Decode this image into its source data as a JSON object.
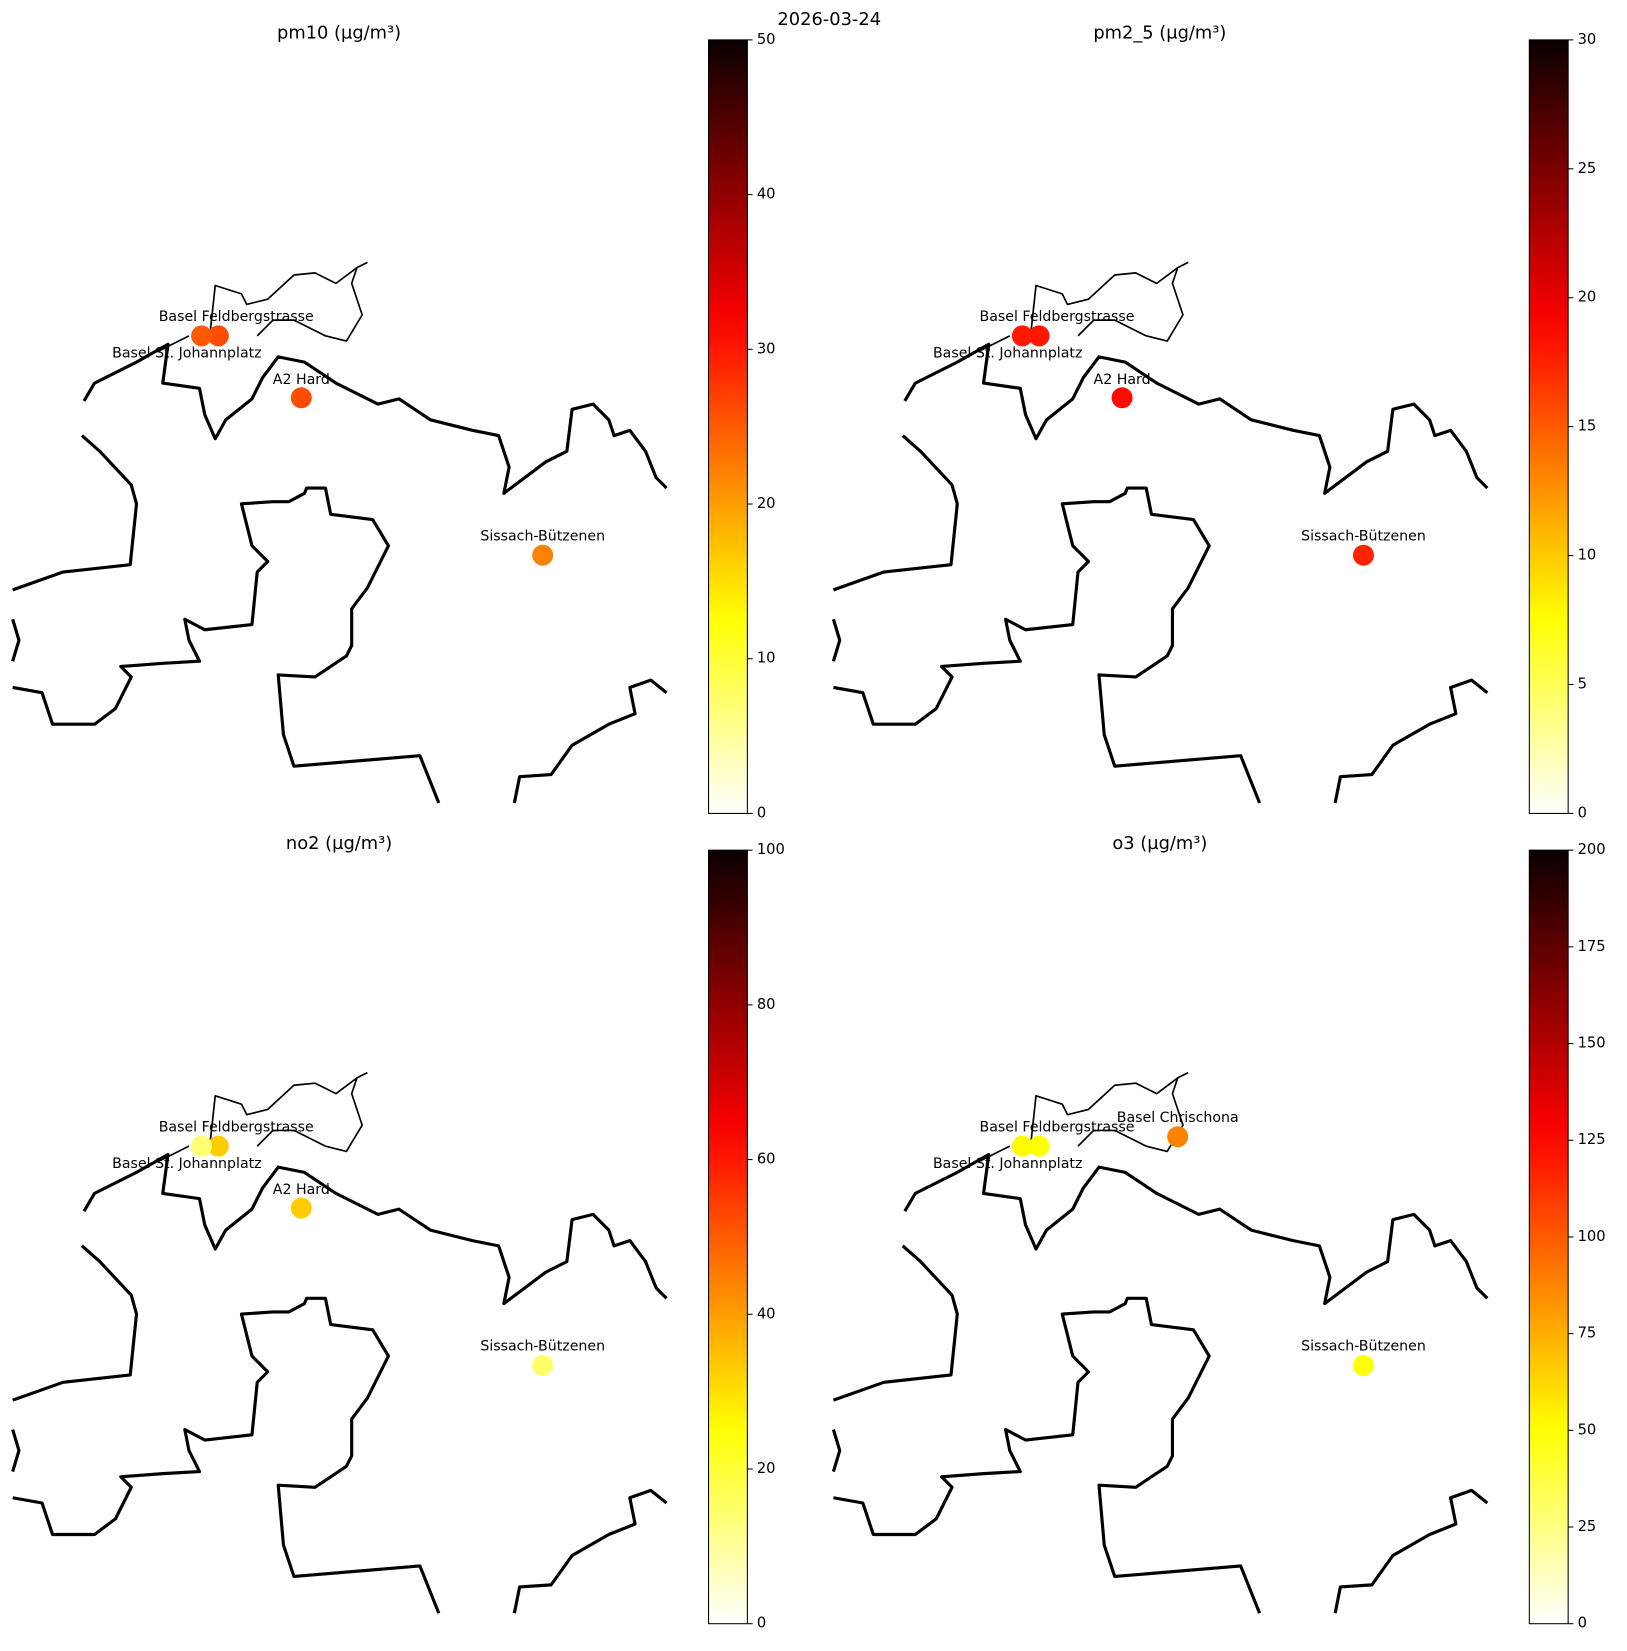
{
  "title": "2026-03-24",
  "maps": [
    {
      "title": "pm10 (µg/m³)",
      "cmap": "hot_r",
      "clim": [
        0,
        50
      ],
      "cticks": [
        0,
        10,
        20,
        30,
        40,
        50
      ],
      "station_names": [
        "Basel Feldbergstrasse",
        "Basel St. Johannplatz",
        "A2 Hard",
        "Sissach-Bützenen"
      ],
      "values": [
        26,
        25,
        26,
        22
      ]
    },
    {
      "title": "pm2_5 (µg/m³)",
      "cmap": "hot_r",
      "clim": [
        0,
        30
      ],
      "cticks": [
        0,
        5,
        10,
        15,
        20,
        25,
        30
      ],
      "station_names": [
        "Basel Feldbergstrasse",
        "Basel St. Johannplatz",
        "A2 Hard",
        "Sissach-Bützenen"
      ],
      "values": [
        18,
        18,
        18.5,
        17.5
      ]
    },
    {
      "title": "no2 (µg/m³)",
      "cmap": "hot_r",
      "clim": [
        0,
        100
      ],
      "cticks": [
        0,
        20,
        40,
        60,
        80,
        100
      ],
      "station_names": [
        "Basel Feldbergstrasse",
        "Basel St. Johannplatz",
        "A2 Hard",
        "Sissach-Bützenen"
      ],
      "values": [
        33,
        14,
        33,
        15
      ]
    },
    {
      "title": "o3 (µg/m³)",
      "cmap": "hot_r",
      "clim": [
        0,
        200
      ],
      "cticks": [
        0,
        25,
        50,
        75,
        100,
        125,
        150,
        175,
        200
      ],
      "station_names": [
        "Basel Feldbergstrasse",
        "Basel St. Johannplatz",
        "Basel Chrischona",
        "Sissach-Bützenen"
      ],
      "values": [
        50,
        52,
        88,
        50
      ]
    }
  ]
}
